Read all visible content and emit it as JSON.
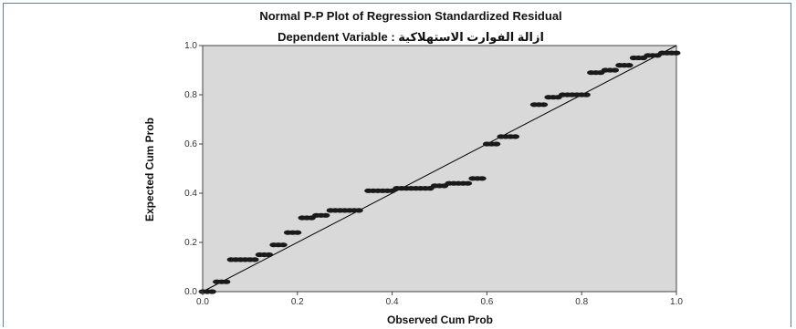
{
  "chart_data": {
    "type": "scatter",
    "title": "Normal P-P Plot of Regression Standardized Residual",
    "subtitle": "Dependent Variable : ازالة الفوارت الاستهلاكية",
    "xlabel": "Observed Cum Prob",
    "ylabel": "Expected Cum Prob",
    "xlim": [
      0,
      1
    ],
    "ylim": [
      0,
      1
    ],
    "xticks": [
      "0.0",
      "0.2",
      "0.4",
      "0.6",
      "0.8",
      "1.0"
    ],
    "yticks": [
      "0.0",
      "0.2",
      "0.4",
      "0.6",
      "0.8",
      "1.0"
    ],
    "reference_line": [
      [
        0,
        0
      ],
      [
        1,
        1
      ]
    ],
    "plot_background": "#d9d9d9",
    "marker_color": "#1a1a1a",
    "points": [
      [
        0.0,
        0.0
      ],
      [
        0.01,
        0.0
      ],
      [
        0.02,
        0.0
      ],
      [
        0.03,
        0.04
      ],
      [
        0.04,
        0.04
      ],
      [
        0.05,
        0.04
      ],
      [
        0.06,
        0.13
      ],
      [
        0.07,
        0.13
      ],
      [
        0.08,
        0.13
      ],
      [
        0.09,
        0.13
      ],
      [
        0.1,
        0.13
      ],
      [
        0.11,
        0.13
      ],
      [
        0.12,
        0.15
      ],
      [
        0.13,
        0.15
      ],
      [
        0.14,
        0.15
      ],
      [
        0.15,
        0.19
      ],
      [
        0.16,
        0.19
      ],
      [
        0.17,
        0.19
      ],
      [
        0.18,
        0.24
      ],
      [
        0.19,
        0.24
      ],
      [
        0.2,
        0.24
      ],
      [
        0.21,
        0.3
      ],
      [
        0.22,
        0.3
      ],
      [
        0.23,
        0.3
      ],
      [
        0.24,
        0.31
      ],
      [
        0.25,
        0.31
      ],
      [
        0.26,
        0.31
      ],
      [
        0.27,
        0.33
      ],
      [
        0.28,
        0.33
      ],
      [
        0.29,
        0.33
      ],
      [
        0.3,
        0.33
      ],
      [
        0.31,
        0.33
      ],
      [
        0.32,
        0.33
      ],
      [
        0.33,
        0.33
      ],
      [
        0.35,
        0.41
      ],
      [
        0.36,
        0.41
      ],
      [
        0.37,
        0.41
      ],
      [
        0.38,
        0.41
      ],
      [
        0.39,
        0.41
      ],
      [
        0.4,
        0.41
      ],
      [
        0.41,
        0.42
      ],
      [
        0.42,
        0.42
      ],
      [
        0.43,
        0.42
      ],
      [
        0.44,
        0.42
      ],
      [
        0.45,
        0.42
      ],
      [
        0.46,
        0.42
      ],
      [
        0.47,
        0.42
      ],
      [
        0.48,
        0.42
      ],
      [
        0.49,
        0.43
      ],
      [
        0.5,
        0.43
      ],
      [
        0.51,
        0.43
      ],
      [
        0.52,
        0.44
      ],
      [
        0.53,
        0.44
      ],
      [
        0.54,
        0.44
      ],
      [
        0.55,
        0.44
      ],
      [
        0.56,
        0.44
      ],
      [
        0.57,
        0.46
      ],
      [
        0.58,
        0.46
      ],
      [
        0.59,
        0.46
      ],
      [
        0.6,
        0.6
      ],
      [
        0.61,
        0.6
      ],
      [
        0.62,
        0.6
      ],
      [
        0.63,
        0.63
      ],
      [
        0.64,
        0.63
      ],
      [
        0.65,
        0.63
      ],
      [
        0.66,
        0.63
      ],
      [
        0.7,
        0.76
      ],
      [
        0.71,
        0.76
      ],
      [
        0.72,
        0.76
      ],
      [
        0.73,
        0.79
      ],
      [
        0.74,
        0.79
      ],
      [
        0.75,
        0.79
      ],
      [
        0.76,
        0.8
      ],
      [
        0.77,
        0.8
      ],
      [
        0.78,
        0.8
      ],
      [
        0.79,
        0.8
      ],
      [
        0.8,
        0.8
      ],
      [
        0.81,
        0.8
      ],
      [
        0.82,
        0.89
      ],
      [
        0.83,
        0.89
      ],
      [
        0.84,
        0.89
      ],
      [
        0.85,
        0.9
      ],
      [
        0.86,
        0.9
      ],
      [
        0.87,
        0.9
      ],
      [
        0.88,
        0.92
      ],
      [
        0.89,
        0.92
      ],
      [
        0.9,
        0.92
      ],
      [
        0.91,
        0.95
      ],
      [
        0.92,
        0.95
      ],
      [
        0.93,
        0.95
      ],
      [
        0.94,
        0.96
      ],
      [
        0.95,
        0.96
      ],
      [
        0.96,
        0.96
      ],
      [
        0.97,
        0.97
      ],
      [
        0.98,
        0.97
      ],
      [
        0.99,
        0.97
      ],
      [
        1.0,
        0.97
      ]
    ]
  }
}
